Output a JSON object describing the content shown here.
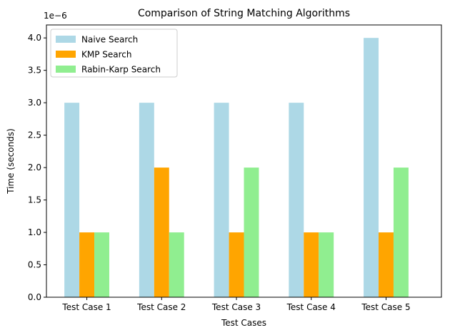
{
  "chart_data": {
    "type": "bar",
    "title": "Comparison of String Matching Algorithms",
    "xlabel": "Test Cases",
    "ylabel": "Time (seconds)",
    "offset_label": "1e−6",
    "categories": [
      "Test Case 1",
      "Test Case 2",
      "Test Case 3",
      "Test Case 4",
      "Test Case 5"
    ],
    "series": [
      {
        "name": "Naive Search",
        "color": "#add8e6",
        "values": [
          3.0,
          3.0,
          3.0,
          3.0,
          4.0
        ]
      },
      {
        "name": "KMP Search",
        "color": "#ffa500",
        "values": [
          1.0,
          2.0,
          1.0,
          1.0,
          1.0
        ]
      },
      {
        "name": "Rabin-Karp Search",
        "color": "#90ee90",
        "values": [
          1.0,
          1.0,
          2.0,
          1.0,
          2.0
        ]
      }
    ],
    "ylim": [
      0,
      4.2
    ],
    "yticks": [
      0.0,
      0.5,
      1.0,
      1.5,
      2.0,
      2.5,
      3.0,
      3.5,
      4.0
    ],
    "ytick_labels": [
      "0.0",
      "0.5",
      "1.0",
      "1.5",
      "2.0",
      "2.5",
      "3.0",
      "3.5",
      "4.0"
    ],
    "value_scale_note": "values in units of 1e-6 seconds",
    "grid": false,
    "legend_position": "top-left"
  }
}
